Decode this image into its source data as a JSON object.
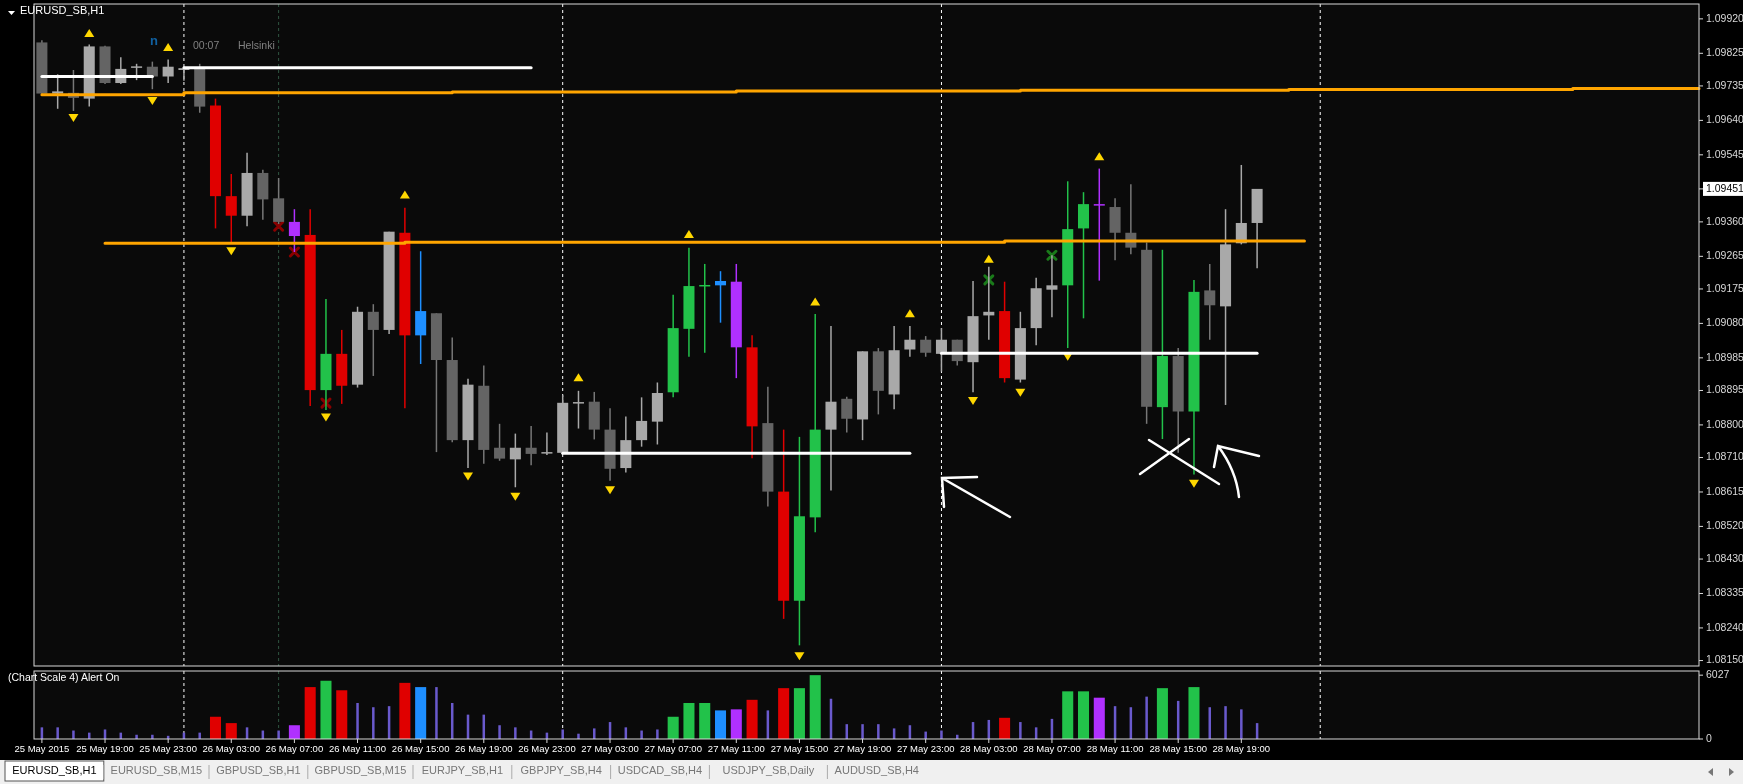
{
  "chart_data": [
    {
      "type": "candlestick",
      "title": "EURUSD_SB,H1",
      "annotations": [
        "n",
        "00:07",
        "Helsinki"
      ],
      "x": [
        "2015-05-25T15:00",
        "2015-05-25T16:00",
        "2015-05-25T17:00",
        "2015-05-25T18:00",
        "2015-05-25T19:00",
        "2015-05-25T20:00",
        "2015-05-25T21:00",
        "2015-05-25T22:00",
        "2015-05-25T23:00",
        "2015-05-26T00:00",
        "2015-05-26T01:00",
        "2015-05-26T02:00",
        "2015-05-26T03:00",
        "2015-05-26T04:00",
        "2015-05-26T05:00",
        "2015-05-26T06:00",
        "2015-05-26T07:00",
        "2015-05-26T08:00",
        "2015-05-26T09:00",
        "2015-05-26T10:00",
        "2015-05-26T11:00",
        "2015-05-26T12:00",
        "2015-05-26T13:00",
        "2015-05-26T14:00",
        "2015-05-26T15:00",
        "2015-05-26T16:00",
        "2015-05-26T17:00",
        "2015-05-26T18:00",
        "2015-05-26T19:00",
        "2015-05-26T20:00",
        "2015-05-26T21:00",
        "2015-05-26T22:00",
        "2015-05-26T23:00",
        "2015-05-27T00:00",
        "2015-05-27T01:00",
        "2015-05-27T02:00",
        "2015-05-27T03:00",
        "2015-05-27T04:00",
        "2015-05-27T05:00",
        "2015-05-27T06:00",
        "2015-05-27T07:00",
        "2015-05-27T08:00",
        "2015-05-27T09:00",
        "2015-05-27T10:00",
        "2015-05-27T11:00",
        "2015-05-27T12:00",
        "2015-05-27T13:00",
        "2015-05-27T14:00",
        "2015-05-27T15:00",
        "2015-05-27T16:00",
        "2015-05-27T17:00",
        "2015-05-27T18:00",
        "2015-05-27T19:00",
        "2015-05-27T20:00",
        "2015-05-27T21:00",
        "2015-05-27T22:00",
        "2015-05-27T23:00",
        "2015-05-28T00:00",
        "2015-05-28T01:00",
        "2015-05-28T02:00",
        "2015-05-28T03:00",
        "2015-05-28T04:00",
        "2015-05-28T05:00",
        "2015-05-28T06:00",
        "2015-05-28T07:00",
        "2015-05-28T08:00",
        "2015-05-28T09:00",
        "2015-05-28T10:00",
        "2015-05-28T11:00",
        "2015-05-28T12:00",
        "2015-05-28T13:00",
        "2015-05-28T14:00",
        "2015-05-28T15:00",
        "2015-05-28T16:00",
        "2015-05-28T17:00",
        "2015-05-28T18:00",
        "2015-05-28T19:00",
        "2015-05-28T20:00"
      ],
      "ohlc": [
        [
          1.09855,
          1.09861,
          1.09708,
          1.09714
        ],
        [
          1.09714,
          1.09767,
          1.09672,
          1.0972
        ],
        [
          1.09716,
          1.09779,
          1.09666,
          1.09702
        ],
        [
          1.097,
          1.09849,
          1.09678,
          1.09844
        ],
        [
          1.09844,
          1.09846,
          1.0974,
          1.09743
        ],
        [
          1.09743,
          1.09814,
          1.0974,
          1.09782
        ],
        [
          1.09787,
          1.09796,
          1.09751,
          1.09789
        ],
        [
          1.09788,
          1.09802,
          1.09726,
          1.09761
        ],
        [
          1.09761,
          1.09808,
          1.09743,
          1.09788
        ],
        [
          1.09779,
          1.0979,
          1.09749,
          1.09784
        ],
        [
          1.09782,
          1.09796,
          1.09661,
          1.09678
        ],
        [
          1.09681,
          1.097,
          1.09342,
          1.09431
        ],
        [
          1.09431,
          1.09492,
          1.09301,
          1.09377
        ],
        [
          1.09377,
          1.09551,
          1.09348,
          1.09495
        ],
        [
          1.09495,
          1.09504,
          1.09366,
          1.09422
        ],
        [
          1.09425,
          1.09481,
          1.09354,
          1.0936
        ],
        [
          1.0936,
          1.09395,
          1.09277,
          1.09321
        ],
        [
          1.09324,
          1.09395,
          1.08852,
          1.08896
        ],
        [
          1.08896,
          1.09147,
          1.08841,
          1.08996
        ],
        [
          1.08996,
          1.09062,
          1.08858,
          1.08908
        ],
        [
          1.08911,
          1.09126,
          1.08903,
          1.09112
        ],
        [
          1.09112,
          1.09133,
          1.08935,
          1.09062
        ],
        [
          1.09062,
          1.09333,
          1.09051,
          1.09333
        ],
        [
          1.0933,
          1.09399,
          1.08846,
          1.09047
        ],
        [
          1.09047,
          1.09279,
          1.08968,
          1.09114
        ],
        [
          1.09108,
          1.09108,
          1.08725,
          1.08979
        ],
        [
          1.08979,
          1.09041,
          1.08752,
          1.08758
        ],
        [
          1.08758,
          1.08927,
          1.08681,
          1.08911
        ],
        [
          1.08908,
          1.08964,
          1.08693,
          1.08731
        ],
        [
          1.08737,
          1.08803,
          1.08701,
          1.08707
        ],
        [
          1.08705,
          1.08776,
          1.08628,
          1.08737
        ],
        [
          1.08737,
          1.08797,
          1.08689,
          1.0872
        ],
        [
          1.08723,
          1.08779,
          1.08717,
          1.08725
        ],
        [
          1.08723,
          1.08882,
          1.0872,
          1.08861
        ],
        [
          1.08861,
          1.08894,
          1.0879,
          1.08863
        ],
        [
          1.08864,
          1.08891,
          1.0876,
          1.08787
        ],
        [
          1.08787,
          1.08846,
          1.08646,
          1.08679
        ],
        [
          1.08681,
          1.08823,
          1.08669,
          1.08758
        ],
        [
          1.08758,
          1.08876,
          1.0874,
          1.08811
        ],
        [
          1.08809,
          1.08917,
          1.08746,
          1.08888
        ],
        [
          1.0889,
          1.09159,
          1.08876,
          1.09067
        ],
        [
          1.09065,
          1.09289,
          1.08988,
          1.09183
        ],
        [
          1.09185,
          1.09244,
          1.08999,
          1.09186
        ],
        [
          1.09197,
          1.09224,
          1.09082,
          1.09185
        ],
        [
          1.09195,
          1.09244,
          1.08929,
          1.09014
        ],
        [
          1.09014,
          1.09047,
          1.08708,
          1.08796
        ],
        [
          1.08805,
          1.08905,
          1.08575,
          1.08616
        ],
        [
          1.08616,
          1.08787,
          1.08265,
          1.08315
        ],
        [
          1.08315,
          1.08767,
          1.08192,
          1.08548
        ],
        [
          1.08545,
          1.09106,
          1.08504,
          1.08787
        ],
        [
          1.08787,
          1.09073,
          1.08619,
          1.08864
        ],
        [
          1.08872,
          1.08878,
          1.08779,
          1.08817
        ],
        [
          1.08815,
          1.09003,
          1.08758,
          1.09003
        ],
        [
          1.09003,
          1.09012,
          1.08829,
          1.08894
        ],
        [
          1.08884,
          1.09073,
          1.08843,
          1.09006
        ],
        [
          1.09008,
          1.09073,
          1.08988,
          1.09035
        ],
        [
          1.09035,
          1.09045,
          1.08988,
          1.08999
        ],
        [
          1.08996,
          1.09067,
          1.08947,
          1.09035
        ],
        [
          1.09035,
          1.09035,
          1.08964,
          1.08976
        ],
        [
          1.08973,
          1.09197,
          1.0889,
          1.091
        ],
        [
          1.09102,
          1.09236,
          1.09035,
          1.09112
        ],
        [
          1.09114,
          1.09195,
          1.08917,
          1.08929
        ],
        [
          1.08925,
          1.09112,
          1.08917,
          1.09067
        ],
        [
          1.09067,
          1.09206,
          1.0902,
          1.09177
        ],
        [
          1.09173,
          1.09268,
          1.09097,
          1.09185
        ],
        [
          1.09185,
          1.09472,
          1.09012,
          1.0934
        ],
        [
          1.09342,
          1.09442,
          1.09094,
          1.09409
        ],
        [
          1.09409,
          1.09507,
          1.09198,
          1.09408
        ],
        [
          1.09401,
          1.09425,
          1.09254,
          1.0933
        ],
        [
          1.0933,
          1.09464,
          1.09271,
          1.09289
        ],
        [
          1.09283,
          1.09303,
          1.08803,
          1.0885
        ],
        [
          1.08849,
          1.09283,
          1.08761,
          1.0899
        ],
        [
          1.0899,
          1.09012,
          1.08723,
          1.08837
        ],
        [
          1.08837,
          1.092,
          1.08663,
          1.09167
        ],
        [
          1.09171,
          1.09244,
          1.09035,
          1.0913
        ],
        [
          1.09127,
          1.09395,
          1.08855,
          1.09298
        ],
        [
          1.09301,
          1.09517,
          1.09298,
          1.09357
        ],
        [
          1.09357,
          1.09451,
          1.09232,
          1.09451
        ]
      ],
      "colors": [
        "#646464",
        "#a9a9a9",
        "#646464",
        "#a9a9a9",
        "#646464",
        "#a9a9a9",
        "#a9a9a9",
        "#646464",
        "#a9a9a9",
        "#a9a9a9",
        "#646464",
        "#e00000",
        "#e00000",
        "#a9a9a9",
        "#646464",
        "#646464",
        "#b030ff",
        "#e00000",
        "#22c24a",
        "#e00000",
        "#a9a9a9",
        "#646464",
        "#a9a9a9",
        "#e00000",
        "#1e8fff",
        "#646464",
        "#646464",
        "#a9a9a9",
        "#646464",
        "#646464",
        "#a9a9a9",
        "#646464",
        "#a9a9a9",
        "#a9a9a9",
        "#a9a9a9",
        "#646464",
        "#646464",
        "#a9a9a9",
        "#a9a9a9",
        "#a9a9a9",
        "#22c24a",
        "#22c24a",
        "#22c24a",
        "#1e8fff",
        "#b030ff",
        "#e00000",
        "#646464",
        "#e00000",
        "#22c24a",
        "#22c24a",
        "#a9a9a9",
        "#646464",
        "#a9a9a9",
        "#646464",
        "#a9a9a9",
        "#a9a9a9",
        "#646464",
        "#a9a9a9",
        "#646464",
        "#a9a9a9",
        "#a9a9a9",
        "#e00000",
        "#a9a9a9",
        "#a9a9a9",
        "#a9a9a9",
        "#22c24a",
        "#22c24a",
        "#b030ff",
        "#646464",
        "#646464",
        "#646464",
        "#22c24a",
        "#646464",
        "#22c24a",
        "#646464",
        "#a9a9a9",
        "#a9a9a9",
        "#a9a9a9"
      ],
      "series": [
        {
          "type": "step",
          "color": "#ffa500",
          "x": [
            "2015-05-25T15:00",
            "2015-05-26T00:00",
            "2015-05-26T17:00",
            "2015-05-27T11:00",
            "2015-05-28T05:00",
            "2015-05-28T22:00",
            "2015-05-29T16:00",
            "2015-05-30T00:00"
          ],
          "values": [
            1.09711,
            1.09716,
            1.09718,
            1.09721,
            1.09723,
            1.09725,
            1.09728,
            1.09728
          ]
        },
        {
          "type": "step",
          "color": "#ffa500",
          "x": [
            "2015-05-25T19:00",
            "2015-05-26T14:00",
            "2015-05-28T04:00",
            "2015-05-28T23:00"
          ],
          "values": [
            1.09301,
            1.09304,
            1.09307,
            1.09307
          ]
        },
        {
          "type": "line",
          "color": "#ffffff",
          "x": [
            "2015-05-25T15:00",
            "2015-05-25T22:00"
          ],
          "values": [
            1.09761,
            1.09761
          ]
        },
        {
          "type": "line",
          "color": "#ffffff",
          "x": [
            "2015-05-26T00:00",
            "2015-05-26T22:00"
          ],
          "values": [
            1.09785,
            1.09785
          ]
        },
        {
          "type": "line",
          "color": "#ffffff",
          "x": [
            "2015-05-27T00:00",
            "2015-05-27T22:00"
          ],
          "values": [
            1.08722,
            1.08722
          ]
        },
        {
          "type": "line",
          "color": "#ffffff",
          "x": [
            "2015-05-28T00:00",
            "2015-05-28T20:00"
          ],
          "values": [
            1.08998,
            1.08998
          ]
        },
        {
          "type": "scatter",
          "color": "#ffd700",
          "marker": "triangle",
          "x": [
            "2015-05-25T18:00",
            "2015-05-25T23:00",
            "2015-05-26T14:00",
            "2015-05-27T01:00",
            "2015-05-27T08:00",
            "2015-05-27T16:00",
            "2015-05-27T22:00",
            "2015-05-28T03:00",
            "2015-05-28T10:00"
          ],
          "values": [
            1.09873,
            1.09834,
            1.09427,
            1.08923,
            1.09318,
            1.09132,
            1.091,
            1.0925,
            1.09533
          ]
        },
        {
          "type": "scatter",
          "color": "#ffd700",
          "marker": "triangle",
          "x": [
            "2015-05-25T17:00",
            "2015-05-25T22:00",
            "2015-05-26T03:00",
            "2015-05-26T09:00",
            "2015-05-26T18:00",
            "2015-05-26T21:00",
            "2015-05-27T03:00",
            "2015-05-27T15:00",
            "2015-05-28T02:00",
            "2015-05-28T05:00",
            "2015-05-28T08:00",
            "2015-05-28T16:00"
          ],
          "values": [
            1.09655,
            1.09702,
            1.09287,
            1.08829,
            1.08666,
            1.0861,
            1.08628,
            1.0817,
            1.08874,
            1.08897,
            1.08996,
            1.08646
          ]
        },
        {
          "type": "scatter",
          "color": "#8b0000",
          "marker": "cross",
          "x": [
            "2015-05-26T06:00",
            "2015-05-26T07:00",
            "2015-05-26T09:00"
          ],
          "values": [
            1.09348,
            1.09277,
            1.0886
          ]
        },
        {
          "type": "scatter",
          "color": "#1a7a1a",
          "marker": "cross",
          "x": [
            "2015-05-28T03:00",
            "2015-05-28T07:00"
          ],
          "values": [
            1.092,
            1.09268
          ]
        }
      ],
      "ref_lines": [
        {
          "axis": "x",
          "value": "2015-05-26T00:00",
          "color": "#ffffff",
          "line_style": "dashed"
        },
        {
          "axis": "x",
          "value": "2015-05-26T06:00",
          "color": "#2f5540",
          "line_style": "dashed"
        },
        {
          "axis": "x",
          "value": "2015-05-27T00:00",
          "color": "#ffffff",
          "line_style": "dashed"
        },
        {
          "axis": "x",
          "value": "2015-05-28T00:00",
          "color": "#ffffff",
          "line_style": "dashed"
        },
        {
          "axis": "x",
          "value": "2015-05-29T00:00",
          "color": "#ffffff",
          "line_style": "dashed"
        }
      ],
      "ylim": [
        1.08135,
        1.09961
      ],
      "yticks": [
        {
          "value": 1.0815,
          "label": "1.08150"
        },
        {
          "value": 1.0824,
          "label": "1.08240"
        },
        {
          "value": 1.08335,
          "label": "1.08335"
        },
        {
          "value": 1.0843,
          "label": "1.08430"
        },
        {
          "value": 1.0852,
          "label": "1.08520"
        },
        {
          "value": 1.08615,
          "label": "1.08615"
        },
        {
          "value": 1.0871,
          "label": "1.08710"
        },
        {
          "value": 1.088,
          "label": "1.08800"
        },
        {
          "value": 1.08895,
          "label": "1.08895"
        },
        {
          "value": 1.08985,
          "label": "1.08985"
        },
        {
          "value": 1.0908,
          "label": "1.09080"
        },
        {
          "value": 1.09175,
          "label": "1.09175"
        },
        {
          "value": 1.09265,
          "label": "1.09265"
        },
        {
          "value": 1.0936,
          "label": "1.09360"
        },
        {
          "value": 1.09451,
          "label": "1.09451"
        },
        {
          "value": 1.09545,
          "label": "1.09545"
        },
        {
          "value": 1.0964,
          "label": "1.09640"
        },
        {
          "value": 1.09735,
          "label": "1.09735"
        },
        {
          "value": 1.09825,
          "label": "1.09825"
        },
        {
          "value": 1.0992,
          "label": "1.09920"
        }
      ],
      "tick_labels": "y",
      "xlim": [
        "2015-05-25T14:30",
        "2015-05-30T00:00"
      ]
    },
    {
      "type": "bar",
      "title": "(Chart Scale 4)   Alert On",
      "color": "#6a5acd",
      "x": [
        "2015-05-25T15:00",
        "2015-05-25T16:00",
        "2015-05-25T17:00",
        "2015-05-25T18:00",
        "2015-05-25T19:00",
        "2015-05-25T20:00",
        "2015-05-25T21:00",
        "2015-05-25T22:00",
        "2015-05-25T23:00",
        "2015-05-26T00:00",
        "2015-05-26T01:00",
        "2015-05-26T02:00",
        "2015-05-26T03:00",
        "2015-05-26T04:00",
        "2015-05-26T05:00",
        "2015-05-26T06:00",
        "2015-05-26T07:00",
        "2015-05-26T08:00",
        "2015-05-26T09:00",
        "2015-05-26T10:00",
        "2015-05-26T11:00",
        "2015-05-26T12:00",
        "2015-05-26T13:00",
        "2015-05-26T14:00",
        "2015-05-26T15:00",
        "2015-05-26T16:00",
        "2015-05-26T17:00",
        "2015-05-26T18:00",
        "2015-05-26T19:00",
        "2015-05-26T20:00",
        "2015-05-26T21:00",
        "2015-05-26T22:00",
        "2015-05-26T23:00",
        "2015-05-27T00:00",
        "2015-05-27T01:00",
        "2015-05-27T02:00",
        "2015-05-27T03:00",
        "2015-05-27T04:00",
        "2015-05-27T05:00",
        "2015-05-27T06:00",
        "2015-05-27T07:00",
        "2015-05-27T08:00",
        "2015-05-27T09:00",
        "2015-05-27T10:00",
        "2015-05-27T11:00",
        "2015-05-27T12:00",
        "2015-05-27T13:00",
        "2015-05-27T14:00",
        "2015-05-27T15:00",
        "2015-05-27T16:00",
        "2015-05-27T17:00",
        "2015-05-27T18:00",
        "2015-05-27T19:00",
        "2015-05-27T20:00",
        "2015-05-27T21:00",
        "2015-05-27T22:00",
        "2015-05-27T23:00",
        "2015-05-28T00:00",
        "2015-05-28T01:00",
        "2015-05-28T02:00",
        "2015-05-28T03:00",
        "2015-05-28T04:00",
        "2015-05-28T05:00",
        "2015-05-28T06:00",
        "2015-05-28T07:00",
        "2015-05-28T08:00",
        "2015-05-28T09:00",
        "2015-05-28T10:00",
        "2015-05-28T11:00",
        "2015-05-28T12:00",
        "2015-05-28T13:00",
        "2015-05-28T14:00",
        "2015-05-28T15:00",
        "2015-05-28T16:00",
        "2015-05-28T17:00",
        "2015-05-28T18:00",
        "2015-05-28T19:00",
        "2015-05-28T20:00"
      ],
      "values": [
        1100,
        1100,
        800,
        600,
        900,
        600,
        400,
        400,
        300,
        600,
        600,
        2100,
        1500,
        1100,
        800,
        800,
        1300,
        4900,
        5500,
        4600,
        3400,
        3000,
        3100,
        5300,
        4900,
        4900,
        3400,
        2300,
        2300,
        1300,
        1100,
        800,
        600,
        900,
        500,
        1000,
        1600,
        1100,
        800,
        900,
        2100,
        3400,
        3400,
        2700,
        2800,
        3700,
        2700,
        4800,
        4800,
        6027,
        3800,
        1400,
        1400,
        1400,
        1000,
        1300,
        700,
        800,
        400,
        1600,
        1800,
        2000,
        1600,
        1100,
        1900,
        4500,
        4500,
        3900,
        3100,
        3000,
        4000,
        4800,
        3600,
        4900,
        3000,
        3100,
        2800,
        1500
      ],
      "colors": [
        "#6a5acd",
        "#6a5acd",
        "#6a5acd",
        "#6a5acd",
        "#6a5acd",
        "#6a5acd",
        "#6a5acd",
        "#6a5acd",
        "#6a5acd",
        "#6a5acd",
        "#6a5acd",
        "#e00000",
        "#e00000",
        "#6a5acd",
        "#6a5acd",
        "#6a5acd",
        "#b030ff",
        "#e00000",
        "#22c24a",
        "#e00000",
        "#6a5acd",
        "#6a5acd",
        "#6a5acd",
        "#e00000",
        "#1e8fff",
        "#6a5acd",
        "#6a5acd",
        "#6a5acd",
        "#6a5acd",
        "#6a5acd",
        "#6a5acd",
        "#6a5acd",
        "#6a5acd",
        "#6a5acd",
        "#6a5acd",
        "#6a5acd",
        "#6a5acd",
        "#6a5acd",
        "#6a5acd",
        "#6a5acd",
        "#22c24a",
        "#22c24a",
        "#22c24a",
        "#1e8fff",
        "#b030ff",
        "#e00000",
        "#6a5acd",
        "#e00000",
        "#22c24a",
        "#22c24a",
        "#6a5acd",
        "#6a5acd",
        "#6a5acd",
        "#6a5acd",
        "#6a5acd",
        "#6a5acd",
        "#6a5acd",
        "#6a5acd",
        "#6a5acd",
        "#6a5acd",
        "#6a5acd",
        "#e00000",
        "#6a5acd",
        "#6a5acd",
        "#6a5acd",
        "#22c24a",
        "#22c24a",
        "#b030ff",
        "#6a5acd",
        "#6a5acd",
        "#6a5acd",
        "#22c24a",
        "#6a5acd",
        "#22c24a",
        "#6a5acd",
        "#6a5acd",
        "#6a5acd",
        "#6a5acd"
      ],
      "ref_lines": [
        {
          "axis": "x",
          "value": "2015-05-26T00:00",
          "color": "#ffffff",
          "line_style": "dashed"
        },
        {
          "axis": "x",
          "value": "2015-05-26T06:00",
          "color": "#2f5540",
          "line_style": "dashed"
        },
        {
          "axis": "x",
          "value": "2015-05-27T00:00",
          "color": "#ffffff",
          "line_style": "dashed"
        },
        {
          "axis": "x",
          "value": "2015-05-28T00:00",
          "color": "#ffffff",
          "line_style": "dashed"
        },
        {
          "axis": "x",
          "value": "2015-05-29T00:00",
          "color": "#ffffff",
          "line_style": "dashed"
        }
      ],
      "xlim": [
        "2015-05-25T14:30",
        "2015-05-30T00:00"
      ],
      "ylim": [
        0,
        6420
      ],
      "yticks": [
        0,
        6027
      ],
      "xticks": [
        {
          "value": "2015-05-25T15:00",
          "label": "25 May 2015"
        },
        {
          "value": "2015-05-25T19:00",
          "label": "25 May 19:00"
        },
        {
          "value": "2015-05-25T23:00",
          "label": "25 May 23:00"
        },
        {
          "value": "2015-05-26T03:00",
          "label": "26 May 03:00"
        },
        {
          "value": "2015-05-26T07:00",
          "label": "26 May 07:00"
        },
        {
          "value": "2015-05-26T11:00",
          "label": "26 May 11:00"
        },
        {
          "value": "2015-05-26T15:00",
          "label": "26 May 15:00"
        },
        {
          "value": "2015-05-26T19:00",
          "label": "26 May 19:00"
        },
        {
          "value": "2015-05-26T23:00",
          "label": "26 May 23:00"
        },
        {
          "value": "2015-05-27T03:00",
          "label": "27 May 03:00"
        },
        {
          "value": "2015-05-27T07:00",
          "label": "27 May 07:00"
        },
        {
          "value": "2015-05-27T11:00",
          "label": "27 May 11:00"
        },
        {
          "value": "2015-05-27T15:00",
          "label": "27 May 15:00"
        },
        {
          "value": "2015-05-27T19:00",
          "label": "27 May 19:00"
        },
        {
          "value": "2015-05-27T23:00",
          "label": "27 May 23:00"
        },
        {
          "value": "2015-05-28T03:00",
          "label": "28 May 03:00"
        },
        {
          "value": "2015-05-28T07:00",
          "label": "28 May 07:00"
        },
        {
          "value": "2015-05-28T11:00",
          "label": "28 May 11:00"
        },
        {
          "value": "2015-05-28T15:00",
          "label": "28 May 15:00"
        },
        {
          "value": "2015-05-28T19:00",
          "label": "28 May 19:00"
        }
      ]
    },
    {
      "type": "other",
      "annotations": [
        "EURUSD_SB,H1",
        "EURUSD_SB,M15",
        "GBPUSD_SB,H1",
        "GBPUSD_SB,M15",
        "EURJPY_SB,H1",
        "GBPJPY_SB,H4",
        "USDCAD_SB,H4",
        "USDJPY_SB,Daily",
        "AUDUSD_SB,H4"
      ]
    }
  ]
}
